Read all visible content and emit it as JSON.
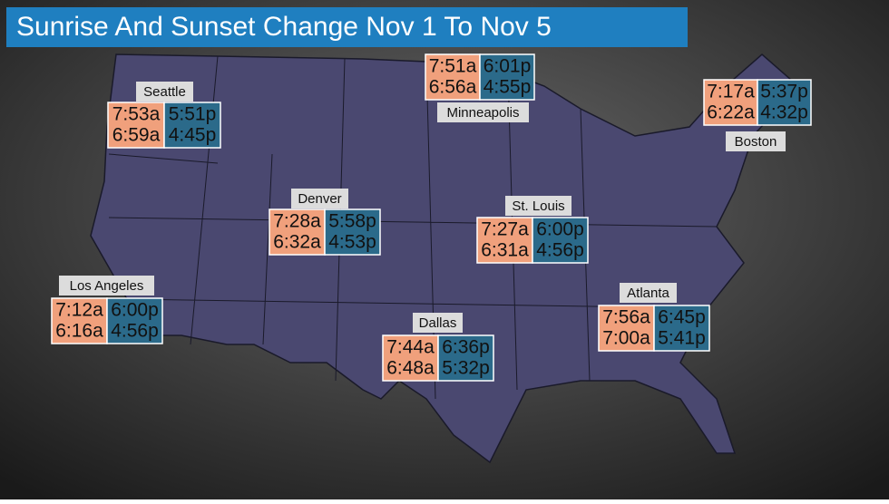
{
  "title": "Sunrise And Sunset Change Nov 1 To Nov 5",
  "cities": [
    {
      "name": "Seattle",
      "sunrise": [
        "7:53a",
        "6:59a"
      ],
      "sunset": [
        "5:51p",
        "4:45p"
      ]
    },
    {
      "name": "Minneapolis",
      "sunrise": [
        "7:51a",
        "6:56a"
      ],
      "sunset": [
        "6:01p",
        "4:55p"
      ]
    },
    {
      "name": "Boston",
      "sunrise": [
        "7:17a",
        "6:22a"
      ],
      "sunset": [
        "5:37p",
        "4:32p"
      ]
    },
    {
      "name": "Denver",
      "sunrise": [
        "7:28a",
        "6:32a"
      ],
      "sunset": [
        "5:58p",
        "4:53p"
      ]
    },
    {
      "name": "St. Louis",
      "sunrise": [
        "7:27a",
        "6:31a"
      ],
      "sunset": [
        "6:00p",
        "4:56p"
      ]
    },
    {
      "name": "Los Angeles",
      "sunrise": [
        "7:12a",
        "6:16a"
      ],
      "sunset": [
        "6:00p",
        "4:56p"
      ]
    },
    {
      "name": "Dallas",
      "sunrise": [
        "7:44a",
        "6:48a"
      ],
      "sunset": [
        "6:36p",
        "5:32p"
      ]
    },
    {
      "name": "Atlanta",
      "sunrise": [
        "7:56a",
        "7:00a"
      ],
      "sunset": [
        "6:45p",
        "5:41p"
      ]
    }
  ]
}
